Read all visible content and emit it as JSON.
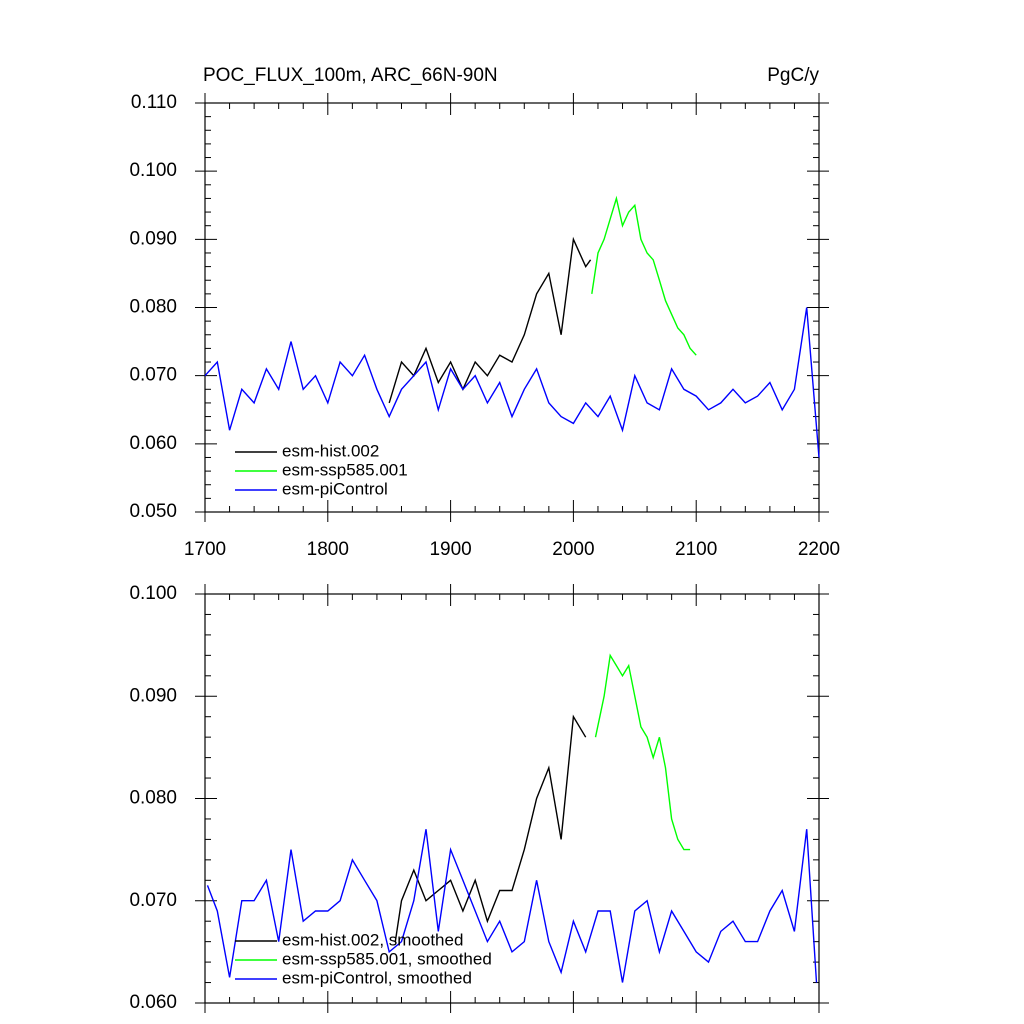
{
  "chart_data": [
    {
      "type": "line",
      "title": "POC_FLUX_100m, ARC_66N-90N",
      "units": "PgC/y",
      "xlim": [
        1700,
        2200
      ],
      "xticks": [
        1700,
        1800,
        1900,
        2000,
        2100,
        2200
      ],
      "ylim": [
        0.05,
        0.11
      ],
      "yticks": [
        {
          "value": 0.05,
          "label": "0.050"
        },
        {
          "value": 0.06,
          "label": "0.060"
        },
        {
          "value": 0.07,
          "label": "0.070"
        },
        {
          "value": 0.08,
          "label": "0.080"
        },
        {
          "value": 0.09,
          "label": "0.090"
        },
        {
          "value": 0.1,
          "label": "0.100"
        },
        {
          "value": 0.11,
          "label": "0.110"
        }
      ],
      "legend": "lower left",
      "series": [
        {
          "name": "esm-hist.002",
          "color": "#000000",
          "x": [
            1850,
            1860,
            1870,
            1880,
            1890,
            1900,
            1910,
            1920,
            1930,
            1940,
            1950,
            1960,
            1970,
            1980,
            1990,
            2000,
            2010,
            2014
          ],
          "values": [
            0.066,
            0.072,
            0.07,
            0.074,
            0.069,
            0.072,
            0.068,
            0.072,
            0.07,
            0.073,
            0.072,
            0.076,
            0.082,
            0.085,
            0.076,
            0.09,
            0.086,
            0.087
          ]
        },
        {
          "name": "esm-ssp585.001",
          "color": "#00ff00",
          "x": [
            2015,
            2020,
            2025,
            2030,
            2035,
            2040,
            2045,
            2050,
            2055,
            2060,
            2065,
            2070,
            2075,
            2080,
            2085,
            2090,
            2095,
            2100
          ],
          "values": [
            0.082,
            0.088,
            0.09,
            0.093,
            0.096,
            0.092,
            0.094,
            0.095,
            0.09,
            0.088,
            0.087,
            0.084,
            0.081,
            0.079,
            0.077,
            0.076,
            0.074,
            0.073
          ]
        },
        {
          "name": "esm-piControl",
          "color": "#0000ff",
          "x": [
            1700,
            1710,
            1720,
            1730,
            1740,
            1750,
            1760,
            1770,
            1780,
            1790,
            1800,
            1810,
            1820,
            1830,
            1840,
            1850,
            1860,
            1870,
            1880,
            1890,
            1900,
            1910,
            1920,
            1930,
            1940,
            1950,
            1960,
            1970,
            1980,
            1990,
            2000,
            2010,
            2020,
            2030,
            2040,
            2050,
            2060,
            2070,
            2080,
            2090,
            2100,
            2110,
            2120,
            2130,
            2140,
            2150,
            2160,
            2170,
            2180,
            2190,
            2200
          ],
          "values": [
            0.07,
            0.072,
            0.062,
            0.068,
            0.066,
            0.071,
            0.068,
            0.075,
            0.068,
            0.07,
            0.066,
            0.072,
            0.07,
            0.073,
            0.068,
            0.064,
            0.068,
            0.07,
            0.072,
            0.065,
            0.071,
            0.068,
            0.07,
            0.066,
            0.069,
            0.064,
            0.068,
            0.071,
            0.066,
            0.064,
            0.063,
            0.066,
            0.064,
            0.067,
            0.062,
            0.07,
            0.066,
            0.065,
            0.071,
            0.068,
            0.067,
            0.065,
            0.066,
            0.068,
            0.066,
            0.067,
            0.069,
            0.065,
            0.068,
            0.08,
            0.058
          ]
        }
      ]
    },
    {
      "type": "line",
      "xlim": [
        1700,
        2200
      ],
      "xticks": [
        1700,
        1800,
        1900,
        2000,
        2100,
        2200
      ],
      "ylim": [
        0.06,
        0.1
      ],
      "yticks": [
        {
          "value": 0.06,
          "label": "0.060"
        },
        {
          "value": 0.07,
          "label": "0.070"
        },
        {
          "value": 0.08,
          "label": "0.080"
        },
        {
          "value": 0.09,
          "label": "0.090"
        },
        {
          "value": 0.1,
          "label": "0.100"
        }
      ],
      "legend": "lower left",
      "series": [
        {
          "name": "esm-hist.002, smoothed",
          "color": "#000000",
          "x": [
            1855,
            1860,
            1870,
            1880,
            1890,
            1900,
            1910,
            1920,
            1930,
            1940,
            1950,
            1960,
            1970,
            1980,
            1990,
            2000,
            2010
          ],
          "values": [
            0.066,
            0.07,
            0.073,
            0.07,
            0.071,
            0.072,
            0.069,
            0.072,
            0.068,
            0.071,
            0.071,
            0.075,
            0.08,
            0.083,
            0.076,
            0.088,
            0.086
          ]
        },
        {
          "name": "esm-ssp585.001, smoothed",
          "color": "#00ff00",
          "x": [
            2018,
            2025,
            2030,
            2035,
            2040,
            2045,
            2050,
            2055,
            2060,
            2065,
            2070,
            2075,
            2080,
            2085,
            2090,
            2095
          ],
          "values": [
            0.086,
            0.09,
            0.094,
            0.093,
            0.092,
            0.093,
            0.09,
            0.087,
            0.086,
            0.084,
            0.086,
            0.083,
            0.078,
            0.076,
            0.075,
            0.075
          ]
        },
        {
          "name": "esm-piControl, smoothed",
          "color": "#0000ff",
          "x": [
            1702,
            1710,
            1720,
            1730,
            1740,
            1750,
            1760,
            1770,
            1780,
            1790,
            1800,
            1810,
            1820,
            1830,
            1840,
            1850,
            1860,
            1870,
            1880,
            1890,
            1900,
            1910,
            1920,
            1930,
            1940,
            1950,
            1960,
            1970,
            1980,
            1990,
            2000,
            2010,
            2020,
            2030,
            2040,
            2050,
            2060,
            2070,
            2080,
            2090,
            2100,
            2110,
            2120,
            2130,
            2140,
            2150,
            2160,
            2170,
            2180,
            2190,
            2198
          ],
          "values": [
            0.0715,
            0.069,
            0.0625,
            0.07,
            0.07,
            0.072,
            0.066,
            0.075,
            0.068,
            0.069,
            0.069,
            0.07,
            0.074,
            0.072,
            0.07,
            0.065,
            0.066,
            0.07,
            0.077,
            0.067,
            0.075,
            0.072,
            0.069,
            0.066,
            0.068,
            0.065,
            0.066,
            0.072,
            0.066,
            0.063,
            0.068,
            0.065,
            0.069,
            0.069,
            0.062,
            0.069,
            0.07,
            0.065,
            0.069,
            0.067,
            0.065,
            0.064,
            0.067,
            0.068,
            0.066,
            0.066,
            0.069,
            0.071,
            0.067,
            0.077,
            0.062
          ]
        }
      ]
    }
  ]
}
